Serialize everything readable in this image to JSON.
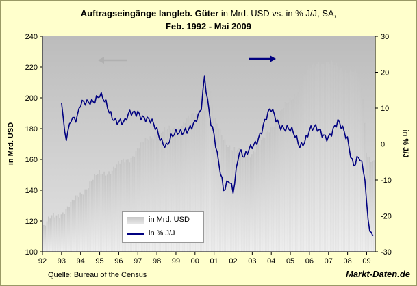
{
  "title": {
    "line1_bold": "Auftragseingänge langleb. Güter",
    "line1_rest": " in Mrd. USD vs. in % J/J, SA,",
    "line2": "Feb. 1992 - Mai 2009"
  },
  "footer": {
    "source": "Quelle: Bureau of the Census",
    "brand": "Markt-Daten.de"
  },
  "colors": {
    "background": "#ffffcc",
    "plot_bg": "#c0c0c0",
    "bars": "#d4d4d4",
    "line": "#000080",
    "arrow_left": "#b0b0b0",
    "arrow_right": "#000080"
  },
  "chart_data": {
    "type": "bar+line",
    "title": "Auftragseingänge langleb. Güter in Mrd. USD vs. in % J/J, SA, Feb. 1992 - Mai 2009",
    "x_ticks": [
      "92",
      "93",
      "94",
      "95",
      "96",
      "97",
      "98",
      "99",
      "00",
      "01",
      "02",
      "03",
      "04",
      "05",
      "06",
      "07",
      "08",
      "09"
    ],
    "y_left": {
      "label": "in Mrd. USD",
      "ylim": [
        100,
        240
      ],
      "ticks": [
        "100",
        "120",
        "140",
        "160",
        "180",
        "200",
        "220",
        "240"
      ]
    },
    "y_right": {
      "label": "in % J/J",
      "ylim": [
        -30,
        30
      ],
      "ticks": [
        "-30",
        "-20",
        "-10",
        "0",
        "10",
        "20",
        "30"
      ]
    },
    "legend": [
      {
        "name": "in Mrd. USD",
        "kind": "bar"
      },
      {
        "name": "in % J/J",
        "kind": "line"
      }
    ],
    "bar_series": {
      "name": "in Mrd. USD",
      "start": 1992.08,
      "step": 0.0833,
      "anchors_year": [
        1992.08,
        1992.5,
        1993.0,
        1993.5,
        1994.0,
        1994.5,
        1995.0,
        1995.5,
        1996.0,
        1996.5,
        1997.0,
        1997.5,
        1998.0,
        1998.5,
        1999.0,
        1999.5,
        2000.0,
        2000.5,
        2000.7,
        2001.0,
        2001.5,
        2002.0,
        2002.5,
        2003.0,
        2003.5,
        2004.0,
        2004.5,
        2005.0,
        2005.5,
        2006.0,
        2006.5,
        2007.0,
        2007.5,
        2008.0,
        2008.5,
        2008.8,
        2009.0,
        2009.4
      ],
      "anchors_value": [
        116,
        122,
        126,
        130,
        138,
        145,
        150,
        153,
        156,
        160,
        167,
        172,
        178,
        178,
        180,
        185,
        188,
        195,
        215,
        185,
        175,
        166,
        163,
        165,
        170,
        182,
        190,
        198,
        208,
        218,
        224,
        222,
        220,
        218,
        215,
        205,
        165,
        158
      ]
    },
    "line_series": {
      "name": "in % J/J",
      "anchors_year": [
        1993.0,
        1993.2,
        1993.5,
        1993.8,
        1994.0,
        1994.5,
        1995.0,
        1995.5,
        1996.0,
        1996.3,
        1996.6,
        1997.0,
        1997.5,
        1998.0,
        1998.5,
        1999.0,
        1999.5,
        2000.0,
        2000.3,
        2000.5,
        2000.8,
        2001.0,
        2001.2,
        2001.5,
        2001.8,
        2002.0,
        2002.3,
        2002.6,
        2003.0,
        2003.5,
        2004.0,
        2004.5,
        2005.0,
        2005.5,
        2006.0,
        2006.5,
        2007.0,
        2007.5,
        2008.0,
        2008.3,
        2008.6,
        2008.9,
        2009.0,
        2009.2,
        2009.4
      ],
      "anchors_value": [
        12,
        2,
        8,
        6,
        10,
        13,
        13,
        9,
        7,
        5,
        8,
        10,
        6,
        4,
        0,
        2,
        5,
        5,
        8,
        19,
        8,
        3,
        -5,
        -14,
        -9,
        -12,
        -2,
        -5,
        0,
        4,
        9,
        6,
        3,
        0,
        4,
        3,
        3,
        5,
        2,
        -5,
        -4,
        -10,
        -18,
        -25,
        -23
      ]
    }
  }
}
